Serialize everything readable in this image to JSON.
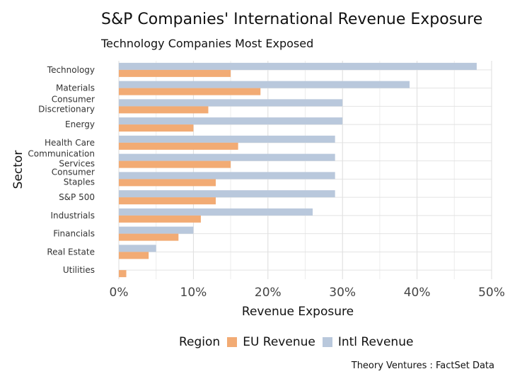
{
  "chart_data": {
    "type": "bar",
    "orientation": "horizontal",
    "title": "S&P Companies' International Revenue Exposure",
    "subtitle": "Technology Companies Most Exposed",
    "xlabel": "Revenue Exposure",
    "ylabel": "Sector",
    "xlim": [
      0,
      50
    ],
    "xticks": [
      "0%",
      "10%",
      "20%",
      "30%",
      "40%",
      "50%"
    ],
    "grid": true,
    "categories": [
      [
        "Technology"
      ],
      [
        "Materials"
      ],
      [
        "Consumer",
        "Discretionary"
      ],
      [
        "Energy"
      ],
      [
        "Health Care"
      ],
      [
        "Communication",
        "Services"
      ],
      [
        "Consumer",
        "Staples"
      ],
      [
        "S&P 500"
      ],
      [
        "Industrials"
      ],
      [
        "Financials"
      ],
      [
        "Real Estate"
      ],
      [
        "Utilities"
      ]
    ],
    "series": [
      {
        "name": "EU Revenue",
        "color": "#f2ab74",
        "values": [
          15,
          19,
          12,
          10,
          16,
          15,
          13,
          13,
          11,
          8,
          4,
          1
        ]
      },
      {
        "name": "Intl Revenue",
        "color": "#b9c8dc",
        "values": [
          48,
          39,
          30,
          30,
          29,
          29,
          29,
          29,
          26,
          10,
          5,
          0
        ]
      }
    ],
    "legend_title": "Region",
    "legend_position": "bottom",
    "caption": "Theory Ventures : FactSet Data"
  }
}
